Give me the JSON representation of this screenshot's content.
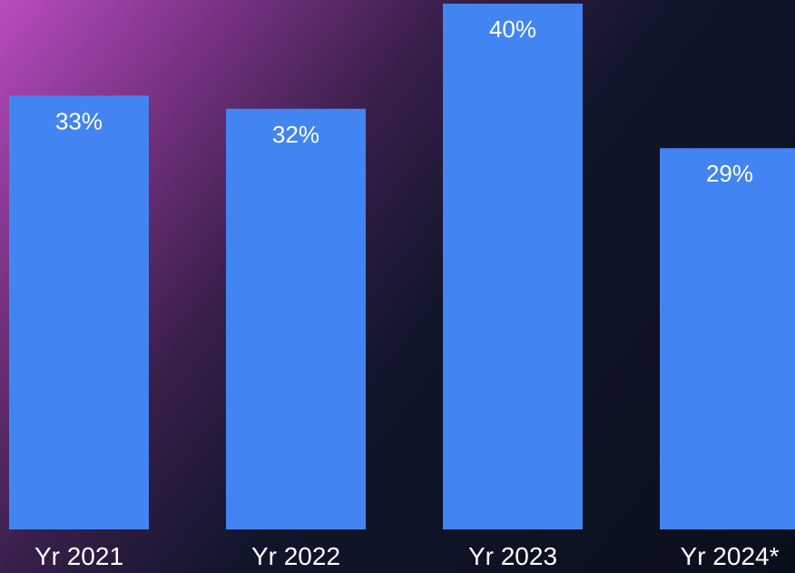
{
  "chart_data": {
    "type": "bar",
    "categories": [
      "Yr 2021",
      "Yr 2022",
      "Yr 2023",
      "Yr 2024*"
    ],
    "values": [
      33,
      32,
      40,
      29
    ],
    "value_labels": [
      "33%",
      "32%",
      "40%",
      "29%"
    ],
    "color": "#4285f2"
  }
}
